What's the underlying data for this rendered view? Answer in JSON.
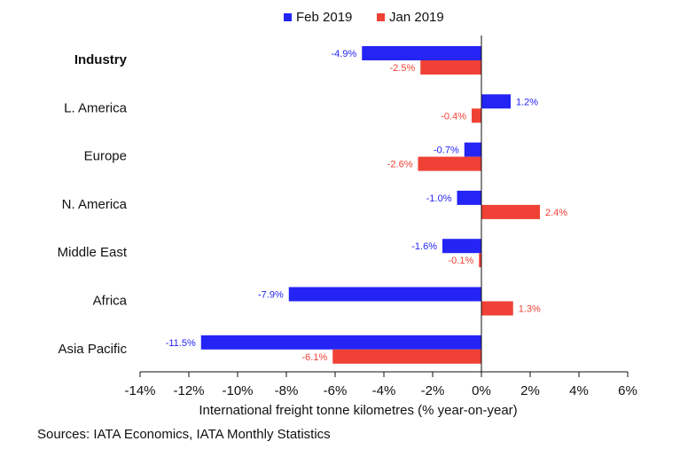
{
  "chart_data": {
    "type": "bar",
    "orientation": "horizontal",
    "categories": [
      "Industry",
      "L. America",
      "Europe",
      "N. America",
      "Middle East",
      "Africa",
      "Asia Pacific"
    ],
    "bold_categories": [
      "Industry"
    ],
    "series": [
      {
        "name": "Feb 2019",
        "color": "#2424f5",
        "values": [
          -4.9,
          1.2,
          -0.7,
          -1.0,
          -1.6,
          -7.9,
          -11.5
        ],
        "labels": [
          "-4.9%",
          "1.2%",
          "-0.7%",
          "-1.0%",
          "-1.6%",
          "-7.9%",
          "-11.5%"
        ]
      },
      {
        "name": "Jan 2019",
        "color": "#ef4135",
        "values": [
          -2.5,
          -0.4,
          -2.6,
          2.4,
          -0.1,
          1.3,
          -6.1
        ],
        "labels": [
          "-2.5%",
          "-0.4%",
          "-2.6%",
          "2.4%",
          "-0.1%",
          "1.3%",
          "-6.1%"
        ]
      }
    ],
    "xlim": [
      -14,
      6
    ],
    "xticks": [
      -14,
      -12,
      -10,
      -8,
      -6,
      -4,
      -2,
      0,
      2,
      4,
      6
    ],
    "xtick_labels": [
      "-14%",
      "-12%",
      "-10%",
      "-8%",
      "-6%",
      "-4%",
      "-2%",
      "0%",
      "2%",
      "4%",
      "6%"
    ],
    "xlabel": "International freight tonne kilometres (% year-on-year)",
    "ylabel": "",
    "legend_position": "top-center",
    "grid": false
  },
  "source": "Sources: IATA Economics, IATA Monthly Statistics"
}
